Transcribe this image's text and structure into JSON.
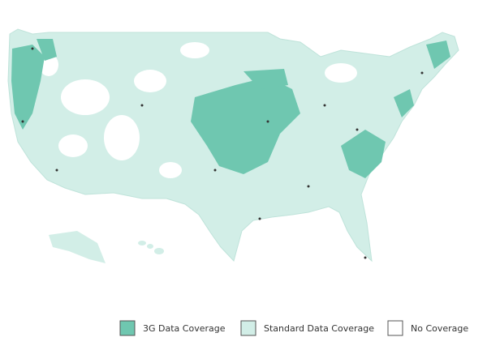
{
  "legend": {
    "items": [
      {
        "label": "3G Data Coverage",
        "color": "#6fc7b0"
      },
      {
        "label": "Standard Data Coverage",
        "color": "#d2eee7"
      },
      {
        "label": "No Coverage",
        "color": "#ffffff"
      }
    ]
  }
}
